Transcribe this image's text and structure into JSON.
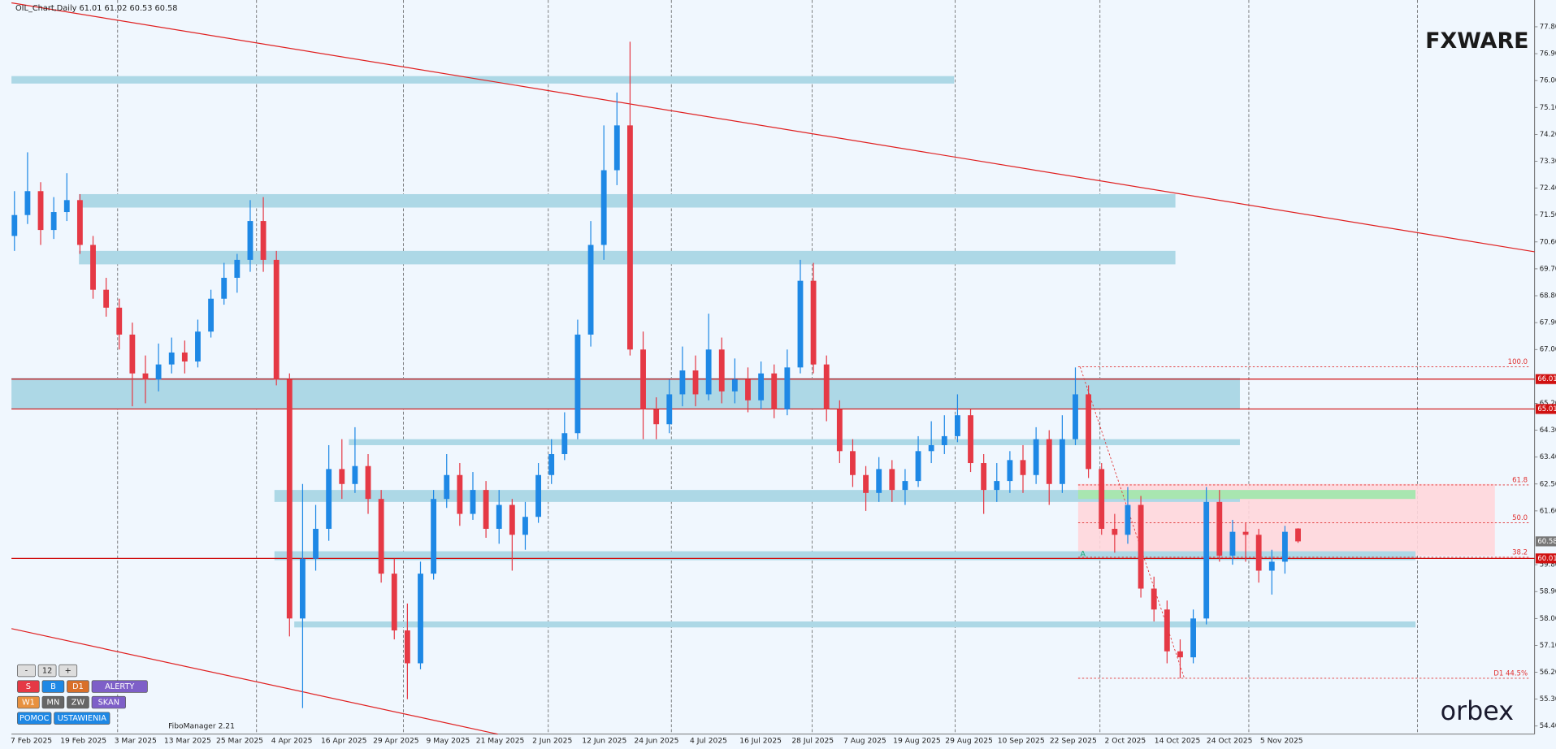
{
  "header": {
    "symbol": "OIL_Chart,Daily  61.01 61.02 60.53 60.58",
    "indicator": "FiboManager 2.21",
    "logo_top": "FXWARE",
    "logo_bottom": "orbex"
  },
  "chart_data": {
    "type": "candlestick",
    "ylim": [
      54.13,
      78.53
    ],
    "yticks": [
      {
        "value": 77.8,
        "label": "77.80"
      },
      {
        "value": 76.9,
        "label": "76.90"
      },
      {
        "value": 76,
        "label": "76.00"
      },
      {
        "value": 75.1,
        "label": "75.10"
      },
      {
        "value": 74.2,
        "label": "74.20"
      },
      {
        "value": 73.3,
        "label": "73.30"
      },
      {
        "value": 72.4,
        "label": "72.40"
      },
      {
        "value": 71.5,
        "label": "71.50"
      },
      {
        "value": 70.6,
        "label": "70.60"
      },
      {
        "value": 69.7,
        "label": "69.70"
      },
      {
        "value": 68.8,
        "label": "68.80"
      },
      {
        "value": 67.9,
        "label": "67.90"
      },
      {
        "value": 67,
        "label": "67.00"
      },
      {
        "value": 65.2,
        "label": "65.20"
      },
      {
        "value": 64.3,
        "label": "64.30"
      },
      {
        "value": 63.4,
        "label": "63.40"
      },
      {
        "value": 62.5,
        "label": "62.50"
      },
      {
        "value": 61.6,
        "label": "61.60"
      },
      {
        "value": 59.8,
        "label": "59.80"
      },
      {
        "value": 58.9,
        "label": "58.90"
      },
      {
        "value": 58,
        "label": "58.00"
      },
      {
        "value": 57.1,
        "label": "57.10"
      },
      {
        "value": 56.2,
        "label": "56.20"
      },
      {
        "value": 55.3,
        "label": "55.30"
      },
      {
        "value": 54.4,
        "label": "54.40"
      }
    ],
    "date_labels": [
      "7 Feb 2025",
      "19 Feb 2025",
      "3 Mar 2025",
      "13 Mar 2025",
      "25 Mar 2025",
      "4 Apr 2025",
      "16 Apr 2025",
      "29 Apr 2025",
      "9 May 2025",
      "21 May 2025",
      "2 Jun 2025",
      "12 Jun 2025",
      "24 Jun 2025",
      "4 Jul 2025",
      "16 Jul 2025",
      "28 Jul 2025",
      "7 Aug 2025",
      "19 Aug 2025",
      "29 Aug 2025",
      "10 Sep 2025",
      "22 Sep 2025",
      "2 Oct 2025",
      "14 Oct 2025",
      "24 Oct 2025",
      "5 Nov 2025"
    ],
    "up_color": "#1e88e5",
    "down_color": "#e53945",
    "open": [
      70.8,
      71.5,
      72.3,
      71.0,
      71.6,
      72.0,
      70.5,
      69.0,
      68.4,
      67.5,
      66.2,
      66.0,
      66.5,
      66.9,
      66.6,
      67.6,
      68.7,
      69.4,
      70.0,
      71.3,
      70.0,
      66.0,
      58.0,
      60.0,
      61.0,
      63.0,
      62.5,
      63.1,
      62.0,
      59.5,
      57.6,
      56.5,
      59.5,
      62.0,
      62.8,
      61.5,
      62.3,
      61.0,
      61.8,
      60.8,
      61.4,
      62.8,
      63.5,
      64.2,
      67.5,
      70.5,
      73.0,
      74.5,
      67.0,
      65.0,
      64.5,
      65.5,
      66.3,
      65.5,
      67.0,
      65.6,
      66.0,
      65.3,
      66.2,
      65.0,
      66.4,
      69.3,
      66.5,
      65.0,
      63.6,
      62.8,
      62.2,
      63.0,
      62.3,
      62.6,
      63.6,
      63.8,
      64.1,
      64.8,
      63.2,
      62.3,
      62.6,
      63.3,
      62.8,
      64.0,
      62.5,
      64.0,
      65.5,
      63.0,
      61.0,
      60.8,
      61.8,
      59.0,
      58.3,
      56.9,
      56.7,
      58.0,
      61.9,
      60.1,
      60.9,
      60.8,
      59.6,
      59.9,
      61.01
    ],
    "high": [
      72.3,
      73.6,
      72.6,
      72.1,
      72.9,
      72.2,
      70.8,
      69.4,
      68.7,
      67.9,
      66.8,
      67.2,
      67.4,
      67.3,
      68.0,
      69.0,
      69.9,
      70.2,
      72.0,
      72.1,
      70.3,
      66.2,
      62.5,
      61.8,
      63.8,
      64.0,
      64.4,
      63.5,
      62.3,
      60.0,
      58.5,
      59.9,
      62.3,
      63.5,
      63.2,
      62.9,
      62.6,
      62.3,
      62.0,
      61.9,
      63.2,
      64.0,
      64.9,
      68.0,
      71.3,
      74.5,
      75.6,
      77.3,
      67.6,
      65.4,
      66.0,
      67.1,
      66.8,
      68.2,
      67.4,
      66.7,
      66.4,
      66.6,
      66.5,
      67.0,
      70.0,
      69.9,
      66.8,
      65.3,
      64.0,
      63.1,
      63.4,
      63.3,
      63.0,
      64.1,
      64.6,
      64.8,
      65.5,
      65.0,
      63.5,
      63.2,
      63.6,
      63.8,
      64.4,
      64.3,
      64.8,
      66.4,
      65.8,
      63.2,
      61.5,
      62.4,
      62.1,
      59.4,
      58.6,
      57.3,
      58.3,
      62.4,
      62.3,
      61.3,
      61.2,
      61.0,
      60.3,
      61.1,
      61.02
    ],
    "low": [
      70.3,
      71.2,
      70.5,
      70.7,
      71.3,
      70.2,
      68.7,
      68.1,
      67.0,
      65.1,
      65.2,
      65.6,
      66.2,
      66.2,
      66.4,
      67.4,
      68.5,
      68.9,
      69.6,
      69.6,
      65.8,
      57.4,
      55.0,
      59.6,
      60.6,
      62.0,
      62.2,
      61.5,
      59.2,
      57.3,
      55.3,
      56.3,
      59.3,
      61.7,
      61.1,
      61.3,
      60.7,
      60.5,
      59.6,
      60.3,
      61.2,
      62.5,
      63.3,
      64.0,
      67.1,
      70.0,
      72.5,
      66.8,
      64.0,
      64.0,
      64.2,
      65.1,
      65.1,
      65.3,
      65.2,
      65.2,
      64.9,
      65.0,
      64.7,
      64.8,
      66.2,
      66.2,
      64.6,
      63.2,
      62.4,
      61.6,
      61.9,
      61.9,
      61.8,
      62.4,
      63.2,
      63.5,
      63.9,
      62.9,
      61.5,
      61.9,
      62.2,
      62.2,
      62.5,
      61.8,
      62.2,
      63.8,
      62.7,
      60.8,
      60.2,
      60.5,
      58.7,
      57.9,
      56.5,
      56.0,
      56.5,
      57.8,
      59.9,
      59.8,
      59.9,
      59.2,
      58.8,
      59.5,
      60.53
    ],
    "close": [
      71.5,
      72.3,
      71.0,
      71.6,
      72.0,
      70.5,
      69.0,
      68.4,
      67.5,
      66.2,
      66.0,
      66.5,
      66.9,
      66.6,
      67.6,
      68.7,
      69.4,
      70.0,
      71.3,
      70.0,
      66.0,
      58.0,
      60.0,
      61.0,
      63.0,
      62.5,
      63.1,
      62.0,
      59.5,
      57.6,
      56.5,
      59.5,
      62.0,
      62.8,
      61.5,
      62.3,
      61.0,
      61.8,
      60.8,
      61.4,
      62.8,
      63.5,
      64.2,
      67.5,
      70.5,
      73.0,
      74.5,
      67.0,
      65.0,
      64.5,
      65.5,
      66.3,
      65.5,
      67.0,
      65.6,
      66.0,
      65.3,
      66.2,
      65.0,
      66.4,
      69.3,
      66.5,
      65.0,
      63.6,
      62.8,
      62.2,
      63.0,
      62.3,
      62.6,
      63.6,
      63.8,
      64.1,
      64.8,
      63.2,
      62.3,
      62.6,
      63.3,
      62.8,
      64.0,
      62.5,
      64.0,
      65.5,
      63.0,
      61.0,
      60.8,
      61.8,
      59.0,
      58.3,
      56.9,
      56.7,
      58.0,
      61.9,
      60.1,
      60.9,
      60.8,
      59.6,
      59.9,
      60.9,
      60.58
    ],
    "zones": [
      [
        75.9,
        76.15
      ],
      [
        71.75,
        72.2
      ],
      [
        69.85,
        70.3
      ],
      [
        65.0,
        66.05
      ],
      [
        63.8,
        64.0
      ],
      [
        61.9,
        62.3
      ],
      [
        59.95,
        60.25
      ],
      [
        57.7,
        57.9
      ]
    ],
    "zone_color": "#add8e6",
    "trendlines": [
      [
        78.6,
        70.27
      ],
      [
        57.66,
        54.13
      ]
    ],
    "red_lines": [
      66.01,
      65.01,
      60.01
    ],
    "price_labels": [
      {
        "value": 66.01,
        "label": "66.01"
      },
      {
        "value": 65.01,
        "label": "65.01"
      },
      {
        "value": 60.58,
        "label": "60.58"
      },
      {
        "value": 60.01,
        "label": "60.01"
      }
    ],
    "fibo_box": [
      60.1,
      62.5
    ],
    "fibo_green": [
      62.0,
      62.3
    ],
    "fibo_levels": [
      {
        "label": "100.0",
        "price": 66.42
      },
      {
        "label": "61.8",
        "price": 62.47
      },
      {
        "label": "50.0",
        "price": 61.2
      },
      {
        "label": "38.2",
        "price": 60.05
      },
      {
        "label": "D1 44.5%",
        "price": 56.0
      }
    ],
    "fibo_anchor": "A"
  },
  "buttons": [
    [
      "-",
      "12",
      "+"
    ],
    [
      "S",
      "B",
      "D1",
      "ALERTY"
    ],
    [
      "W1",
      "MN",
      "ZW",
      "SKAN"
    ],
    [
      "POMOC",
      "USTAWIENIA"
    ]
  ]
}
